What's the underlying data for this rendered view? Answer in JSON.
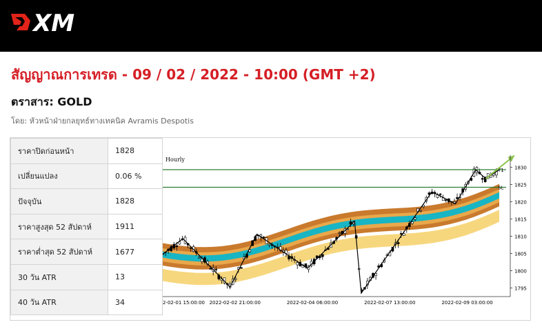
{
  "brand": {
    "name": "XM"
  },
  "page": {
    "title": "สัญญาณการเทรด - 09 / 02 / 2022 - 10:00 (GMT +2)",
    "instrument": "ตราสาร: GOLD",
    "author": "โดย: หัวหน้าฝ่ายกลยุทธ์ทางเทคนิค Avramis Despotis"
  },
  "stats": [
    {
      "label": "ราคาปิดก่อนหน้า",
      "value": "1828"
    },
    {
      "label": "เปลี่ยนแปลง",
      "value": "0.06 %"
    },
    {
      "label": "ปัจจุบัน",
      "value": "1828"
    },
    {
      "label": "ราคาสูงสุด 52 สัปดาห์",
      "value": "1911"
    },
    {
      "label": "ราคาต่ำสุด 52 สัปดาห์",
      "value": "1677"
    },
    {
      "label": "30 วัน ATR",
      "value": "13"
    },
    {
      "label": "40 วัน ATR",
      "value": "34"
    }
  ],
  "chart_data": {
    "type": "line",
    "title": "Hourly",
    "y_ticks": [
      1830,
      1825,
      1820,
      1815,
      1810,
      1805,
      1800,
      1795
    ],
    "ylim": [
      1792.5,
      1832.5
    ],
    "x_ticks": [
      "2-02-01 15:00:00",
      "2022-02-02 21:00:00",
      "2022-02-04 06:00:00",
      "2022-02-07 13:00:00",
      "2022-02-09 03:00:00"
    ],
    "levels": [
      {
        "name": "T1",
        "value": 1829.3
      },
      {
        "name": "SL",
        "value": 1824.2
      }
    ],
    "zigzag": [
      {
        "x": 0.0,
        "y": 1804.8
      },
      {
        "x": 0.06,
        "y": 1809.3
      },
      {
        "x": 0.2,
        "y": 1795.3
      },
      {
        "x": 0.28,
        "y": 1810.6
      },
      {
        "x": 0.43,
        "y": 1800.7
      },
      {
        "x": 0.57,
        "y": 1814.4
      },
      {
        "x": 0.59,
        "y": 1793.5
      },
      {
        "x": 0.8,
        "y": 1822.9
      },
      {
        "x": 0.87,
        "y": 1819.4
      },
      {
        "x": 0.93,
        "y": 1829.3
      },
      {
        "x": 0.96,
        "y": 1826.7
      },
      {
        "x": 1.0,
        "y": 1829.3
      }
    ],
    "forecast": [
      {
        "x": 0.96,
        "y": 1826.7
      },
      {
        "x": 1.08,
        "y": 1833.4
      }
    ],
    "colors": {
      "level": "#2e7d32",
      "forecast": "#8bc34a",
      "zigzag": "#000000",
      "band_outer": "#c97a2d",
      "band_middle": "#e9a84b",
      "band_inner": "#18b5c4",
      "band_lower": "#f7d77e"
    }
  }
}
